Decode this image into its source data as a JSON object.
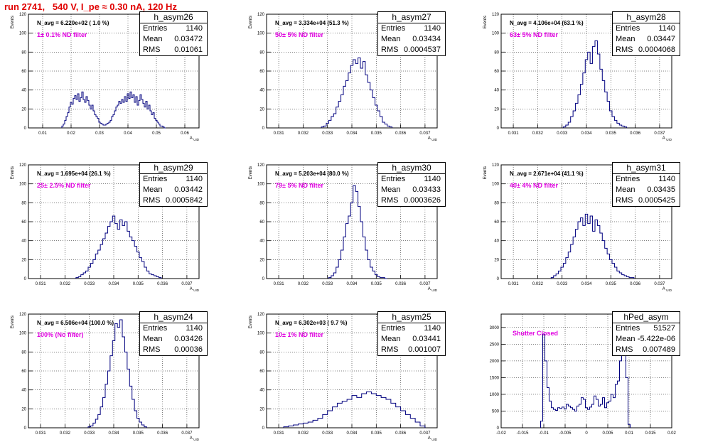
{
  "header": {
    "title": "run 2741,   540 V, I_pe ≈ 0.30 nA, 120 Hz"
  },
  "chart_data": [
    {
      "type": "histogram",
      "name": "h_asym26",
      "n_avg": "N_avg = 6.220e+02 ( 1.0 %)",
      "filter": "1± 0.1% ND filter",
      "ylabel": "Events",
      "xlabel": "A_uid",
      "entries": "1140",
      "mean": "0.03472",
      "rms": "0.01061",
      "xlim": [
        0.005,
        0.065
      ],
      "ylim": [
        0,
        120
      ],
      "xticks": [
        0.01,
        0.02,
        0.03,
        0.04,
        0.05,
        0.06
      ],
      "xticklabels": [
        "0.01",
        "0.02",
        "0.03",
        "0.04",
        "0.05",
        "0.06"
      ],
      "yticks": [
        0,
        20,
        40,
        60,
        80,
        100,
        120
      ],
      "x": [
        0.017,
        0.0175,
        0.018,
        0.0185,
        0.019,
        0.0195,
        0.02,
        0.0205,
        0.021,
        0.0215,
        0.022,
        0.0225,
        0.023,
        0.0235,
        0.024,
        0.0245,
        0.025,
        0.0255,
        0.026,
        0.0265,
        0.027,
        0.0275,
        0.028,
        0.0285,
        0.029,
        0.0295,
        0.03,
        0.0305,
        0.031,
        0.0315,
        0.032,
        0.0325,
        0.033,
        0.0335,
        0.034,
        0.0345,
        0.035,
        0.0355,
        0.036,
        0.0365,
        0.037,
        0.0375,
        0.038,
        0.0385,
        0.039,
        0.0395,
        0.04,
        0.0405,
        0.041,
        0.0415,
        0.042,
        0.0425,
        0.043,
        0.0435,
        0.044,
        0.0445,
        0.045,
        0.0455,
        0.046,
        0.0465,
        0.047,
        0.0475,
        0.048,
        0.0485,
        0.049,
        0.0495,
        0.05,
        0.0505,
        0.051,
        0.0515,
        0.052,
        0.0525,
        0.053
      ],
      "counts": [
        2,
        4,
        8,
        12,
        16,
        22,
        27,
        25,
        31,
        34,
        30,
        36,
        28,
        32,
        38,
        30,
        27,
        33,
        29,
        24,
        20,
        24,
        18,
        14,
        12,
        10,
        6,
        5,
        4,
        3,
        3,
        4,
        5,
        6,
        8,
        12,
        14,
        18,
        22,
        24,
        28,
        26,
        30,
        27,
        33,
        28,
        36,
        31,
        38,
        32,
        35,
        27,
        33,
        24,
        29,
        35,
        30,
        26,
        22,
        28,
        20,
        24,
        18,
        14,
        16,
        10,
        8,
        6,
        4,
        2,
        2,
        1,
        0
      ]
    },
    {
      "type": "histogram",
      "name": "h_asym27",
      "n_avg": "N_avg = 3.334e+04 (51.3 %)",
      "filter": "50± 5% ND filter",
      "ylabel": "Events",
      "xlabel": "A_uid",
      "entries": "1140",
      "mean": "0.03434",
      "rms": "0.0004537",
      "xlim": [
        0.0305,
        0.0375
      ],
      "ylim": [
        0,
        120
      ],
      "xticks": [
        0.031,
        0.032,
        0.033,
        0.034,
        0.035,
        0.036,
        0.037
      ],
      "xticklabels": [
        "0.031",
        "0.032",
        "0.033",
        "0.034",
        "0.035",
        "0.036",
        "0.037"
      ],
      "yticks": [
        0,
        20,
        40,
        60,
        80,
        100,
        120
      ],
      "x": [
        0.0328,
        0.0329,
        0.033,
        0.0331,
        0.0332,
        0.0333,
        0.0334,
        0.0335,
        0.0336,
        0.0337,
        0.0338,
        0.0339,
        0.034,
        0.0341,
        0.0342,
        0.0343,
        0.0344,
        0.0345,
        0.0346,
        0.0347,
        0.0348,
        0.0349,
        0.035,
        0.0351,
        0.0352,
        0.0353,
        0.0354,
        0.0355,
        0.0356
      ],
      "counts": [
        1,
        2,
        5,
        8,
        12,
        15,
        22,
        28,
        35,
        44,
        50,
        58,
        66,
        72,
        68,
        74,
        63,
        70,
        56,
        48,
        40,
        32,
        24,
        18,
        12,
        6,
        4,
        2,
        1
      ]
    },
    {
      "type": "histogram",
      "name": "h_asym28",
      "n_avg": "N_avg = 4.106e+04 (63.1 %)",
      "filter": "63± 5% ND filter",
      "ylabel": "Events",
      "xlabel": "A_uid",
      "entries": "1140",
      "mean": "0.03447",
      "rms": "0.0004068",
      "xlim": [
        0.0305,
        0.0375
      ],
      "ylim": [
        0,
        120
      ],
      "xticks": [
        0.031,
        0.032,
        0.033,
        0.034,
        0.035,
        0.036,
        0.037
      ],
      "xticklabels": [
        "0.031",
        "0.032",
        "0.033",
        "0.034",
        "0.035",
        "0.036",
        "0.037"
      ],
      "yticks": [
        0,
        20,
        40,
        60,
        80,
        100,
        120
      ],
      "x": [
        0.0331,
        0.0332,
        0.0333,
        0.0334,
        0.0335,
        0.0336,
        0.0337,
        0.0338,
        0.0339,
        0.034,
        0.0341,
        0.0342,
        0.0343,
        0.0344,
        0.0345,
        0.0346,
        0.0347,
        0.0348,
        0.0349,
        0.035,
        0.0351,
        0.0352,
        0.0353,
        0.0354,
        0.0355,
        0.0356
      ],
      "counts": [
        1,
        3,
        6,
        12,
        18,
        26,
        35,
        46,
        58,
        72,
        80,
        68,
        86,
        92,
        78,
        62,
        50,
        38,
        28,
        18,
        12,
        8,
        5,
        3,
        2,
        1
      ]
    },
    {
      "type": "histogram",
      "name": "h_asym29",
      "n_avg": "N_avg = 1.695e+04 (26.1 %)",
      "filter": "25± 2.5% ND filter",
      "ylabel": "Events",
      "xlabel": "A_uid",
      "entries": "1140",
      "mean": "0.03442",
      "rms": "0.0005842",
      "xlim": [
        0.0305,
        0.0375
      ],
      "ylim": [
        0,
        120
      ],
      "xticks": [
        0.031,
        0.032,
        0.033,
        0.034,
        0.035,
        0.036,
        0.037
      ],
      "xticklabels": [
        "0.031",
        "0.032",
        "0.033",
        "0.034",
        "0.035",
        "0.036",
        "0.037"
      ],
      "yticks": [
        0,
        20,
        40,
        60,
        80,
        100,
        120
      ],
      "x": [
        0.0325,
        0.0326,
        0.0327,
        0.0328,
        0.0329,
        0.033,
        0.0331,
        0.0332,
        0.0333,
        0.0334,
        0.0335,
        0.0336,
        0.0337,
        0.0338,
        0.0339,
        0.034,
        0.0341,
        0.0342,
        0.0343,
        0.0344,
        0.0345,
        0.0346,
        0.0347,
        0.0348,
        0.0349,
        0.035,
        0.0351,
        0.0352,
        0.0353,
        0.0354,
        0.0355,
        0.0356,
        0.0357,
        0.0358,
        0.0359
      ],
      "counts": [
        1,
        2,
        4,
        6,
        8,
        12,
        16,
        20,
        26,
        30,
        36,
        42,
        48,
        55,
        60,
        66,
        58,
        52,
        62,
        56,
        60,
        50,
        44,
        40,
        34,
        28,
        22,
        18,
        12,
        8,
        5,
        4,
        3,
        2,
        1
      ]
    },
    {
      "type": "histogram",
      "name": "h_asym30",
      "n_avg": "N_avg = 5.203e+04 (80.0 %)",
      "filter": "79± 5% ND filter",
      "ylabel": "Events",
      "xlabel": "A_uid",
      "entries": "1140",
      "mean": "0.03433",
      "rms": "0.0003626",
      "xlim": [
        0.0305,
        0.0375
      ],
      "ylim": [
        0,
        120
      ],
      "xticks": [
        0.031,
        0.032,
        0.033,
        0.034,
        0.035,
        0.036,
        0.037
      ],
      "xticklabels": [
        "0.031",
        "0.032",
        "0.033",
        "0.034",
        "0.035",
        "0.036",
        "0.037"
      ],
      "yticks": [
        0,
        20,
        40,
        60,
        80,
        100,
        120
      ],
      "x": [
        0.0331,
        0.0332,
        0.0333,
        0.0334,
        0.0335,
        0.0336,
        0.0337,
        0.0338,
        0.0339,
        0.034,
        0.0341,
        0.0342,
        0.0343,
        0.0344,
        0.0345,
        0.0346,
        0.0347,
        0.0348,
        0.0349,
        0.035,
        0.0351,
        0.0352,
        0.0353,
        0.0354
      ],
      "counts": [
        1,
        3,
        6,
        12,
        20,
        30,
        44,
        58,
        66,
        80,
        98,
        92,
        76,
        60,
        44,
        30,
        20,
        12,
        8,
        4,
        2,
        1,
        1,
        0
      ]
    },
    {
      "type": "histogram",
      "name": "h_asym31",
      "n_avg": "N_avg = 2.671e+04 (41.1 %)",
      "filter": "40± 4% ND filter",
      "ylabel": "Events",
      "xlabel": "A_uid",
      "entries": "1140",
      "mean": "0.03435",
      "rms": "0.0005425",
      "xlim": [
        0.0305,
        0.0375
      ],
      "ylim": [
        0,
        120
      ],
      "xticks": [
        0.031,
        0.032,
        0.033,
        0.034,
        0.035,
        0.036,
        0.037
      ],
      "xticklabels": [
        "0.031",
        "0.032",
        "0.033",
        "0.034",
        "0.035",
        "0.036",
        "0.037"
      ],
      "yticks": [
        0,
        20,
        40,
        60,
        80,
        100,
        120
      ],
      "x": [
        0.0326,
        0.0327,
        0.0328,
        0.0329,
        0.033,
        0.0331,
        0.0332,
        0.0333,
        0.0334,
        0.0335,
        0.0336,
        0.0337,
        0.0338,
        0.0339,
        0.034,
        0.0341,
        0.0342,
        0.0343,
        0.0344,
        0.0345,
        0.0346,
        0.0347,
        0.0348,
        0.0349,
        0.035,
        0.0351,
        0.0352,
        0.0353,
        0.0354,
        0.0355,
        0.0356,
        0.0357,
        0.0358,
        0.0359
      ],
      "counts": [
        1,
        3,
        5,
        8,
        12,
        16,
        22,
        28,
        36,
        44,
        52,
        60,
        64,
        56,
        68,
        58,
        66,
        50,
        62,
        56,
        48,
        40,
        32,
        26,
        20,
        16,
        12,
        8,
        6,
        4,
        3,
        2,
        1,
        1
      ]
    },
    {
      "type": "histogram",
      "name": "h_asym24",
      "n_avg": "N_avg = 6.506e+04 (100.0 %)",
      "filter": "100% (No filter)",
      "ylabel": "Events",
      "xlabel": "A_uid",
      "entries": "1140",
      "mean": "0.03426",
      "rms": "0.00036",
      "xlim": [
        0.0305,
        0.0375
      ],
      "ylim": [
        0,
        120
      ],
      "xticks": [
        0.031,
        0.032,
        0.033,
        0.034,
        0.035,
        0.036,
        0.037
      ],
      "xticklabels": [
        "0.031",
        "0.032",
        "0.033",
        "0.034",
        "0.035",
        "0.036",
        "0.037"
      ],
      "yticks": [
        0,
        20,
        40,
        60,
        80,
        100,
        120
      ],
      "x": [
        0.033,
        0.0331,
        0.0332,
        0.0333,
        0.0334,
        0.0335,
        0.0336,
        0.0337,
        0.0338,
        0.0339,
        0.034,
        0.0341,
        0.0342,
        0.0343,
        0.0344,
        0.0345,
        0.0346,
        0.0347,
        0.0348,
        0.0349,
        0.035,
        0.0351,
        0.0352,
        0.0353
      ],
      "counts": [
        1,
        2,
        5,
        9,
        14,
        22,
        32,
        46,
        60,
        76,
        92,
        110,
        106,
        114,
        96,
        80,
        62,
        44,
        30,
        18,
        10,
        6,
        3,
        1
      ]
    },
    {
      "type": "histogram",
      "name": "h_asym25",
      "n_avg": "N_avg = 6.302e+03 ( 9.7 %)",
      "filter": "10± 1% ND filter",
      "ylabel": "Events",
      "xlabel": "A_uid",
      "entries": "1140",
      "mean": "0.03441",
      "rms": "0.001007",
      "xlim": [
        0.0305,
        0.0375
      ],
      "ylim": [
        0,
        120
      ],
      "xticks": [
        0.031,
        0.032,
        0.033,
        0.034,
        0.035,
        0.036,
        0.037
      ],
      "xticklabels": [
        "0.031",
        "0.032",
        "0.033",
        "0.034",
        "0.035",
        "0.036",
        "0.037"
      ],
      "yticks": [
        0,
        20,
        40,
        60,
        80,
        100,
        120
      ],
      "x": [
        0.0313,
        0.0315,
        0.0317,
        0.0319,
        0.0321,
        0.0323,
        0.0325,
        0.0327,
        0.0329,
        0.0331,
        0.0333,
        0.0335,
        0.0337,
        0.0339,
        0.0341,
        0.0343,
        0.0345,
        0.0347,
        0.0349,
        0.0351,
        0.0353,
        0.0355,
        0.0357,
        0.0359,
        0.0361,
        0.0363,
        0.0365,
        0.0367,
        0.0369
      ],
      "counts": [
        1,
        2,
        3,
        4,
        5,
        6,
        8,
        10,
        14,
        18,
        22,
        26,
        28,
        30,
        34,
        32,
        36,
        38,
        36,
        34,
        32,
        30,
        26,
        22,
        18,
        14,
        10,
        6,
        2
      ]
    },
    {
      "type": "histogram",
      "name": "hPed_asym",
      "n_avg": "",
      "filter": "Shutter Closed",
      "ylabel": "",
      "xlabel": "",
      "entries": "51527",
      "mean": "-5.422e-06",
      "rms": "0.007489",
      "xlim": [
        -0.02,
        0.02
      ],
      "ylim": [
        0,
        3400
      ],
      "xticks": [
        -0.02,
        -0.015,
        -0.01,
        -0.005,
        0,
        0.005,
        0.01,
        0.015,
        0.02
      ],
      "xticklabels": [
        "-0.02",
        "-0.015",
        "-0.01",
        "-0.005",
        "0",
        "0.005",
        "0.01",
        "0.015",
        "0.02"
      ],
      "yticks": [
        0,
        500,
        1000,
        1500,
        2000,
        2500,
        3000
      ],
      "x": [
        -0.0105,
        -0.01,
        -0.0095,
        -0.009,
        -0.0085,
        -0.008,
        -0.0075,
        -0.007,
        -0.0065,
        -0.006,
        -0.0055,
        -0.005,
        -0.0045,
        -0.004,
        -0.0035,
        -0.003,
        -0.0025,
        -0.002,
        -0.0015,
        -0.001,
        -0.0005,
        0.0,
        0.0005,
        0.001,
        0.0015,
        0.002,
        0.0025,
        0.003,
        0.0035,
        0.004,
        0.0045,
        0.005,
        0.0055,
        0.006,
        0.0065,
        0.007,
        0.0075,
        0.008,
        0.0085,
        0.009,
        0.0095,
        0.01
      ],
      "counts": [
        200,
        2800,
        2000,
        1200,
        800,
        600,
        550,
        520,
        600,
        580,
        620,
        560,
        700,
        650,
        600,
        550,
        500,
        650,
        700,
        900,
        850,
        600,
        550,
        620,
        700,
        950,
        850,
        650,
        700,
        900,
        600,
        750,
        800,
        1000,
        900,
        1300,
        1400,
        2000,
        2700,
        2500,
        1500,
        100
      ]
    }
  ]
}
